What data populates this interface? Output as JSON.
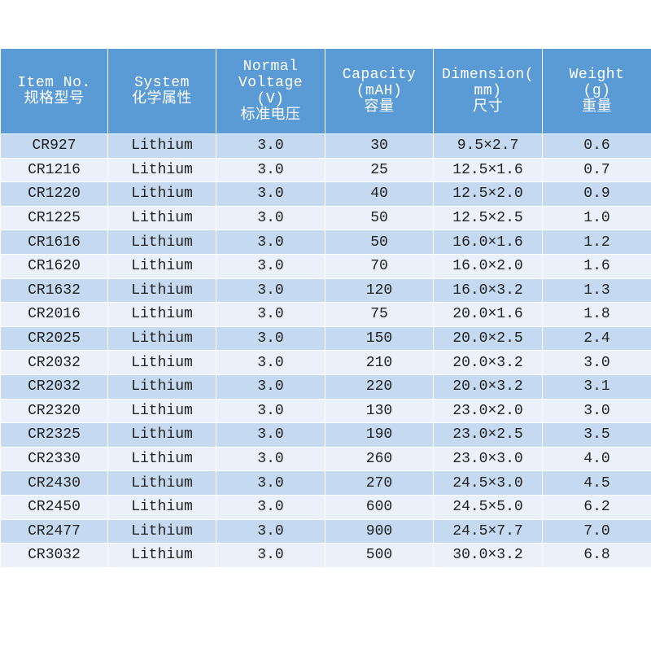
{
  "table": {
    "header": [
      [
        "Item No.",
        "规格型号"
      ],
      [
        "System",
        "化学属性"
      ],
      [
        "Normal",
        "Voltage",
        "(V)",
        "标准电压"
      ],
      [
        "Capacity",
        "(mAH)",
        "容量"
      ],
      [
        "Dimension(",
        "mm)",
        "尺寸"
      ],
      [
        "Weight",
        "(g)",
        "重量"
      ]
    ],
    "rows": [
      [
        "CR927",
        "Lithium",
        "3.0",
        "30",
        "9.5×2.7",
        "0.6"
      ],
      [
        "CR1216",
        "Lithium",
        "3.0",
        "25",
        "12.5×1.6",
        "0.7"
      ],
      [
        "CR1220",
        "Lithium",
        "3.0",
        "40",
        "12.5×2.0",
        "0.9"
      ],
      [
        "CR1225",
        "Lithium",
        "3.0",
        "50",
        "12.5×2.5",
        "1.0"
      ],
      [
        "CR1616",
        "Lithium",
        "3.0",
        "50",
        "16.0×1.6",
        "1.2"
      ],
      [
        "CR1620",
        "Lithium",
        "3.0",
        "70",
        "16.0×2.0",
        "1.6"
      ],
      [
        "CR1632",
        "Lithium",
        "3.0",
        "120",
        "16.0×3.2",
        "1.3"
      ],
      [
        "CR2016",
        "Lithium",
        "3.0",
        "75",
        "20.0×1.6",
        "1.8"
      ],
      [
        "CR2025",
        "Lithium",
        "3.0",
        "150",
        "20.0×2.5",
        "2.4"
      ],
      [
        "CR2032",
        "Lithium",
        "3.0",
        "210",
        "20.0×3.2",
        "3.0"
      ],
      [
        "CR2032",
        "Lithium",
        "3.0",
        "220",
        "20.0×3.2",
        "3.1"
      ],
      [
        "CR2320",
        "Lithium",
        "3.0",
        "130",
        "23.0×2.0",
        "3.0"
      ],
      [
        "CR2325",
        "Lithium",
        "3.0",
        "190",
        "23.0×2.5",
        "3.5"
      ],
      [
        "CR2330",
        "Lithium",
        "3.0",
        "260",
        "23.0×3.0",
        "4.0"
      ],
      [
        "CR2430",
        "Lithium",
        "3.0",
        "270",
        "24.5×3.0",
        "4.5"
      ],
      [
        "CR2450",
        "Lithium",
        "3.0",
        "600",
        "24.5×5.0",
        "6.2"
      ],
      [
        "CR2477",
        "Lithium",
        "3.0",
        "900",
        "24.5×7.7",
        "7.0"
      ],
      [
        "CR3032",
        "Lithium",
        "3.0",
        "500",
        "30.0×3.2",
        "6.8"
      ]
    ]
  }
}
